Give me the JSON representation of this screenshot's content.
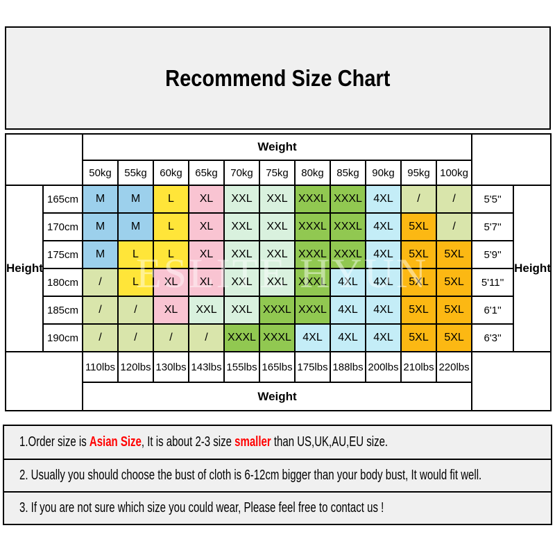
{
  "title": "Recommend Size Chart",
  "watermark": "ESLITE HYUN",
  "table": {
    "weight_label_top": "Weight",
    "weight_label_bottom": "Weight",
    "height_label_left": "Height",
    "height_label_right": "Height",
    "kg_columns": [
      "50kg",
      "55kg",
      "60kg",
      "65kg",
      "70kg",
      "75kg",
      "80kg",
      "85kg",
      "90kg",
      "95kg",
      "100kg"
    ],
    "lbs_columns": [
      "110lbs",
      "120lbs",
      "130lbs",
      "143lbs",
      "155lbs",
      "165lbs",
      "175lbs",
      "188lbs",
      "200lbs",
      "210lbs",
      "220lbs"
    ],
    "colors": {
      "blue": "#9CD0EC",
      "yellow": "#FFE539",
      "pink": "#F9C4D2",
      "mint": "#D9F1DE",
      "green": "#91C851",
      "cyan": "#C4EDF7",
      "olive": "#D9E5AB",
      "orange": "#FCB813"
    },
    "rows": [
      {
        "cm": "165cm",
        "ft": "5'5''",
        "cells": [
          {
            "v": "M",
            "c": "blue"
          },
          {
            "v": "M",
            "c": "blue"
          },
          {
            "v": "L",
            "c": "yellow"
          },
          {
            "v": "XL",
            "c": "pink"
          },
          {
            "v": "XXL",
            "c": "mint"
          },
          {
            "v": "XXL",
            "c": "mint"
          },
          {
            "v": "XXXL",
            "c": "green"
          },
          {
            "v": "XXXL",
            "c": "green"
          },
          {
            "v": "4XL",
            "c": "cyan"
          },
          {
            "v": "/",
            "c": "olive"
          },
          {
            "v": "/",
            "c": "olive"
          }
        ]
      },
      {
        "cm": "170cm",
        "ft": "5'7''",
        "cells": [
          {
            "v": "M",
            "c": "blue"
          },
          {
            "v": "M",
            "c": "blue"
          },
          {
            "v": "L",
            "c": "yellow"
          },
          {
            "v": "XL",
            "c": "pink"
          },
          {
            "v": "XXL",
            "c": "mint"
          },
          {
            "v": "XXL",
            "c": "mint"
          },
          {
            "v": "XXXL",
            "c": "green"
          },
          {
            "v": "XXXL",
            "c": "green"
          },
          {
            "v": "4XL",
            "c": "cyan"
          },
          {
            "v": "5XL",
            "c": "orange"
          },
          {
            "v": "/",
            "c": "olive"
          }
        ]
      },
      {
        "cm": "175cm",
        "ft": "5'9''",
        "cells": [
          {
            "v": "M",
            "c": "blue"
          },
          {
            "v": "L",
            "c": "yellow"
          },
          {
            "v": "L",
            "c": "yellow"
          },
          {
            "v": "XL",
            "c": "pink"
          },
          {
            "v": "XXL",
            "c": "mint"
          },
          {
            "v": "XXL",
            "c": "mint"
          },
          {
            "v": "XXXL",
            "c": "green"
          },
          {
            "v": "XXXL",
            "c": "green"
          },
          {
            "v": "4XL",
            "c": "cyan"
          },
          {
            "v": "5XL",
            "c": "orange"
          },
          {
            "v": "5XL",
            "c": "orange"
          }
        ]
      },
      {
        "cm": "180cm",
        "ft": "5'11''",
        "cells": [
          {
            "v": "/",
            "c": "olive"
          },
          {
            "v": "L",
            "c": "yellow"
          },
          {
            "v": "XL",
            "c": "pink"
          },
          {
            "v": "XL",
            "c": "pink"
          },
          {
            "v": "XXL",
            "c": "mint"
          },
          {
            "v": "XXL",
            "c": "mint"
          },
          {
            "v": "XXXL",
            "c": "green"
          },
          {
            "v": "4XL",
            "c": "cyan"
          },
          {
            "v": "4XL",
            "c": "cyan"
          },
          {
            "v": "5XL",
            "c": "orange"
          },
          {
            "v": "5XL",
            "c": "orange"
          }
        ]
      },
      {
        "cm": "185cm",
        "ft": "6'1''",
        "cells": [
          {
            "v": "/",
            "c": "olive"
          },
          {
            "v": "/",
            "c": "olive"
          },
          {
            "v": "XL",
            "c": "pink"
          },
          {
            "v": "XXL",
            "c": "mint"
          },
          {
            "v": "XXL",
            "c": "mint"
          },
          {
            "v": "XXXL",
            "c": "green"
          },
          {
            "v": "XXXL",
            "c": "green"
          },
          {
            "v": "4XL",
            "c": "cyan"
          },
          {
            "v": "4XL",
            "c": "cyan"
          },
          {
            "v": "5XL",
            "c": "orange"
          },
          {
            "v": "5XL",
            "c": "orange"
          }
        ]
      },
      {
        "cm": "190cm",
        "ft": "6'3''",
        "cells": [
          {
            "v": "/",
            "c": "olive"
          },
          {
            "v": "/",
            "c": "olive"
          },
          {
            "v": "/",
            "c": "olive"
          },
          {
            "v": "/",
            "c": "olive"
          },
          {
            "v": "XXXL",
            "c": "green"
          },
          {
            "v": "XXXL",
            "c": "green"
          },
          {
            "v": "4XL",
            "c": "cyan"
          },
          {
            "v": "4XL",
            "c": "cyan"
          },
          {
            "v": "4XL",
            "c": "cyan"
          },
          {
            "v": "5XL",
            "c": "orange"
          },
          {
            "v": "5XL",
            "c": "orange"
          }
        ]
      }
    ]
  },
  "notes": {
    "note1_segments": [
      {
        "text": "1.Order size is ",
        "red": false
      },
      {
        "text": "Asian Size",
        "red": true
      },
      {
        "text": ", It is about 2-3 size ",
        "red": false
      },
      {
        "text": "smaller",
        "red": true
      },
      {
        "text": " than US,UK,AU,EU size.",
        "red": false
      }
    ],
    "note2": "2. Usually you should choose the bust of cloth is 6-12cm bigger than your body bust, It would fit well.",
    "note3": "3. If you are not sure which size you could wear, Please feel free to contact us !"
  }
}
